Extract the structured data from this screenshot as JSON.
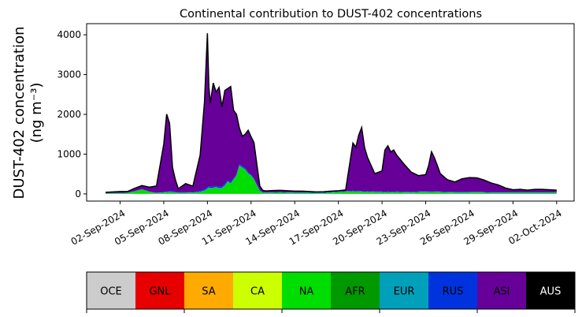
{
  "chart_data": {
    "type": "area",
    "stacked": true,
    "title": "Continental contribution to DUST-402 concentrations",
    "ylabel_line1": "DUST-402 concentration",
    "ylabel_line2": "(ng m⁻³)",
    "xlabel": "",
    "x_start": "2024-09-01",
    "x_end": "2024-10-01",
    "xlim_days": [
      -1.3,
      32.2
    ],
    "ylim": [
      -180,
      4280
    ],
    "yticks": [
      0,
      1000,
      2000,
      3000,
      4000
    ],
    "xticks": [
      {
        "day": 1,
        "label": "02-Sep-2024"
      },
      {
        "day": 4,
        "label": "05-Sep-2024"
      },
      {
        "day": 7,
        "label": "08-Sep-2024"
      },
      {
        "day": 10,
        "label": "11-Sep-2024"
      },
      {
        "day": 13,
        "label": "14-Sep-2024"
      },
      {
        "day": 16,
        "label": "17-Sep-2024"
      },
      {
        "day": 19,
        "label": "20-Sep-2024"
      },
      {
        "day": 22,
        "label": "23-Sep-2024"
      },
      {
        "day": 25,
        "label": "26-Sep-2024"
      },
      {
        "day": 28,
        "label": "29-Sep-2024"
      },
      {
        "day": 31,
        "label": "02-Oct-2024"
      }
    ],
    "x": [
      0,
      0.5,
      1,
      1.5,
      2,
      2.5,
      3,
      3.5,
      4,
      4.2,
      4.4,
      4.6,
      4.8,
      5,
      5.5,
      6,
      6.5,
      6.8,
      7,
      7.1,
      7.2,
      7.4,
      7.6,
      7.8,
      8,
      8.2,
      8.4,
      8.6,
      8.8,
      9,
      9.2,
      9.4,
      9.6,
      9.8,
      10,
      10.2,
      10.4,
      10.6,
      10.8,
      11,
      11.5,
      12,
      12.5,
      13,
      13.5,
      14,
      14.5,
      15,
      15.5,
      16,
      16.5,
      17,
      17.2,
      17.4,
      17.6,
      17.8,
      18,
      18.5,
      19,
      19.2,
      19.4,
      19.6,
      19.8,
      20,
      20.5,
      21,
      21.5,
      22,
      22.2,
      22.4,
      22.6,
      22.8,
      23,
      23.5,
      24,
      24.5,
      25,
      25.5,
      26,
      26.5,
      27,
      27.5,
      28,
      28.5,
      29,
      29.5,
      30,
      30.5,
      31
    ],
    "series": [
      {
        "name": "OCE",
        "color": "#cccccc",
        "values": [
          0,
          0,
          0,
          0,
          0,
          0,
          0,
          0,
          0,
          0,
          0,
          0,
          0,
          0,
          0,
          0,
          0,
          0,
          0,
          0,
          0,
          0,
          0,
          0,
          0,
          0,
          0,
          0,
          0,
          0,
          0,
          0,
          0,
          0,
          0,
          0,
          0,
          0,
          0,
          0,
          0,
          0,
          0,
          0,
          0,
          0,
          0,
          0,
          0,
          0,
          0,
          0,
          0,
          0,
          0,
          0,
          0,
          0,
          0,
          0,
          0,
          0,
          0,
          0,
          0,
          0,
          0,
          0,
          0,
          0,
          0,
          0,
          0,
          0,
          0,
          0,
          0,
          0,
          0,
          0,
          0,
          0,
          0,
          0,
          0,
          0,
          0,
          0,
          0
        ]
      },
      {
        "name": "GNL",
        "color": "#e60000",
        "values": [
          0,
          0,
          0,
          0,
          0,
          0,
          0,
          0,
          0,
          0,
          0,
          0,
          0,
          0,
          0,
          0,
          0,
          0,
          0,
          0,
          0,
          0,
          0,
          0,
          0,
          0,
          0,
          0,
          0,
          0,
          0,
          0,
          0,
          0,
          0,
          0,
          0,
          0,
          0,
          0,
          0,
          0,
          0,
          0,
          0,
          0,
          0,
          0,
          0,
          0,
          0,
          0,
          0,
          0,
          0,
          0,
          0,
          0,
          0,
          0,
          0,
          0,
          0,
          0,
          0,
          0,
          0,
          0,
          0,
          0,
          0,
          0,
          0,
          0,
          0,
          0,
          0,
          0,
          0,
          0,
          0,
          0,
          0,
          0,
          0,
          0,
          0,
          0,
          0
        ]
      },
      {
        "name": "SA",
        "color": "#ffaa00",
        "values": [
          0,
          0,
          0,
          0,
          0,
          0,
          0,
          0,
          0,
          0,
          0,
          0,
          0,
          0,
          0,
          0,
          0,
          0,
          0,
          0,
          0,
          0,
          0,
          0,
          0,
          0,
          0,
          0,
          0,
          0,
          0,
          0,
          0,
          0,
          0,
          0,
          0,
          0,
          0,
          0,
          0,
          0,
          0,
          0,
          0,
          0,
          0,
          0,
          0,
          0,
          0,
          0,
          0,
          0,
          0,
          0,
          0,
          0,
          0,
          0,
          0,
          0,
          0,
          0,
          0,
          0,
          0,
          0,
          0,
          0,
          0,
          0,
          0,
          0,
          0,
          0,
          0,
          0,
          0,
          0,
          0,
          0,
          0,
          0,
          0,
          0,
          0,
          0,
          0
        ]
      },
      {
        "name": "CA",
        "color": "#ccff00",
        "values": [
          0,
          0,
          0,
          0,
          0,
          0,
          0,
          0,
          0,
          0,
          0,
          0,
          0,
          0,
          0,
          0,
          0,
          0,
          0,
          0,
          0,
          0,
          0,
          0,
          0,
          0,
          0,
          0,
          0,
          0,
          0,
          0,
          0,
          0,
          0,
          0,
          0,
          0,
          0,
          0,
          0,
          0,
          0,
          0,
          0,
          0,
          0,
          0,
          0,
          0,
          0,
          0,
          0,
          0,
          0,
          0,
          0,
          0,
          0,
          0,
          0,
          0,
          0,
          0,
          0,
          0,
          0,
          0,
          0,
          0,
          0,
          0,
          0,
          0,
          0,
          0,
          0,
          0,
          0,
          0,
          0,
          0,
          0,
          0,
          0,
          0,
          0,
          0,
          0
        ]
      },
      {
        "name": "NA",
        "color": "#00dd00",
        "values": [
          10,
          15,
          15,
          20,
          60,
          110,
          50,
          20,
          30,
          35,
          40,
          35,
          30,
          20,
          20,
          25,
          40,
          70,
          120,
          150,
          130,
          140,
          160,
          130,
          140,
          200,
          300,
          250,
          350,
          450,
          700,
          650,
          600,
          500,
          450,
          350,
          200,
          60,
          30,
          20,
          25,
          30,
          25,
          20,
          20,
          20,
          15,
          15,
          30,
          40,
          50,
          60,
          55,
          60,
          50,
          45,
          50,
          40,
          40,
          35,
          40,
          35,
          35,
          40,
          35,
          30,
          40,
          45,
          40,
          40,
          40,
          45,
          40,
          35,
          30,
          30,
          30,
          35,
          30,
          25,
          25,
          25,
          25,
          25,
          25,
          25,
          25,
          25,
          25
        ]
      },
      {
        "name": "AFR",
        "color": "#009900",
        "values": [
          0,
          0,
          0,
          0,
          0,
          0,
          0,
          0,
          0,
          0,
          0,
          0,
          0,
          0,
          0,
          0,
          0,
          0,
          0,
          0,
          0,
          0,
          0,
          0,
          0,
          0,
          0,
          0,
          0,
          0,
          0,
          0,
          0,
          0,
          0,
          0,
          0,
          0,
          0,
          0,
          0,
          0,
          0,
          0,
          0,
          0,
          0,
          0,
          0,
          0,
          0,
          0,
          0,
          0,
          0,
          0,
          0,
          0,
          0,
          0,
          0,
          0,
          0,
          0,
          0,
          0,
          0,
          0,
          0,
          0,
          0,
          0,
          0,
          0,
          0,
          0,
          0,
          0,
          0,
          0,
          0,
          0,
          0,
          0,
          0,
          0,
          0,
          0,
          0
        ]
      },
      {
        "name": "EUR",
        "color": "#00a0bb",
        "values": [
          5,
          5,
          5,
          5,
          5,
          5,
          5,
          5,
          10,
          10,
          15,
          15,
          10,
          10,
          10,
          10,
          15,
          20,
          20,
          20,
          20,
          20,
          20,
          20,
          20,
          20,
          20,
          20,
          20,
          20,
          20,
          20,
          20,
          20,
          20,
          20,
          20,
          20,
          10,
          10,
          10,
          10,
          10,
          10,
          10,
          10,
          10,
          10,
          10,
          10,
          10,
          10,
          10,
          10,
          10,
          10,
          10,
          10,
          10,
          10,
          10,
          10,
          10,
          10,
          10,
          10,
          10,
          10,
          10,
          10,
          10,
          10,
          10,
          10,
          10,
          10,
          10,
          10,
          10,
          10,
          10,
          10,
          10,
          10,
          10,
          10,
          10,
          10,
          10
        ]
      },
      {
        "name": "RUS",
        "color": "#0033dd",
        "values": [
          5,
          5,
          5,
          5,
          5,
          5,
          5,
          5,
          10,
          10,
          20,
          20,
          15,
          10,
          10,
          10,
          20,
          30,
          30,
          30,
          30,
          30,
          30,
          30,
          30,
          30,
          30,
          30,
          30,
          30,
          30,
          30,
          30,
          30,
          20,
          20,
          20,
          20,
          10,
          10,
          10,
          10,
          10,
          10,
          10,
          10,
          10,
          10,
          10,
          10,
          10,
          10,
          10,
          10,
          10,
          10,
          10,
          10,
          10,
          10,
          10,
          10,
          10,
          10,
          10,
          10,
          10,
          10,
          10,
          10,
          10,
          10,
          10,
          10,
          10,
          10,
          10,
          10,
          10,
          10,
          10,
          10,
          10,
          10,
          10,
          10,
          10,
          10,
          10
        ]
      },
      {
        "name": "ASI",
        "color": "#660099",
        "values": [
          20,
          25,
          35,
          30,
          70,
          90,
          110,
          170,
          1200,
          1950,
          1700,
          600,
          300,
          90,
          220,
          150,
          900,
          2200,
          3870,
          2500,
          2100,
          2600,
          2350,
          2500,
          2000,
          2350,
          2300,
          2400,
          1700,
          1500,
          900,
          750,
          850,
          1050,
          950,
          900,
          500,
          100,
          40,
          35,
          40,
          40,
          35,
          30,
          30,
          20,
          15,
          20,
          20,
          20,
          30,
          1200,
          1100,
          1400,
          1600,
          1100,
          850,
          450,
          520,
          1050,
          1150,
          1000,
          1050,
          920,
          700,
          500,
          400,
          420,
          650,
          1000,
          850,
          650,
          450,
          300,
          250,
          330,
          360,
          350,
          300,
          230,
          180,
          100,
          60,
          70,
          50,
          70,
          70,
          60,
          50
        ]
      },
      {
        "name": "AUS",
        "color": "#000000",
        "values": [
          0,
          0,
          0,
          0,
          0,
          0,
          0,
          0,
          0,
          0,
          0,
          0,
          0,
          0,
          0,
          0,
          0,
          0,
          0,
          0,
          0,
          0,
          0,
          0,
          0,
          0,
          0,
          0,
          0,
          0,
          0,
          0,
          0,
          0,
          0,
          0,
          0,
          0,
          0,
          0,
          0,
          0,
          0,
          0,
          0,
          0,
          0,
          0,
          0,
          0,
          0,
          0,
          0,
          0,
          0,
          0,
          0,
          0,
          0,
          0,
          0,
          0,
          0,
          0,
          0,
          0,
          0,
          0,
          0,
          0,
          0,
          0,
          0,
          0,
          0,
          0,
          0,
          0,
          0,
          0,
          0,
          0,
          0,
          0,
          0,
          0,
          0,
          0,
          0
        ]
      }
    ],
    "legend": [
      {
        "label": "OCE",
        "color": "#cccccc",
        "text_color": "#000000"
      },
      {
        "label": "GNL",
        "color": "#e60000",
        "text_color": "#000000"
      },
      {
        "label": "SA",
        "color": "#ffaa00",
        "text_color": "#000000"
      },
      {
        "label": "CA",
        "color": "#ccff00",
        "text_color": "#000000"
      },
      {
        "label": "NA",
        "color": "#00dd00",
        "text_color": "#000000"
      },
      {
        "label": "AFR",
        "color": "#009900",
        "text_color": "#000000"
      },
      {
        "label": "EUR",
        "color": "#00a0bb",
        "text_color": "#000000"
      },
      {
        "label": "RUS",
        "color": "#0033dd",
        "text_color": "#000000"
      },
      {
        "label": "ASI",
        "color": "#660099",
        "text_color": "#000000"
      },
      {
        "label": "AUS",
        "color": "#000000",
        "text_color": "#ffffff"
      }
    ],
    "legend_placement": "bottom",
    "grid": false
  }
}
